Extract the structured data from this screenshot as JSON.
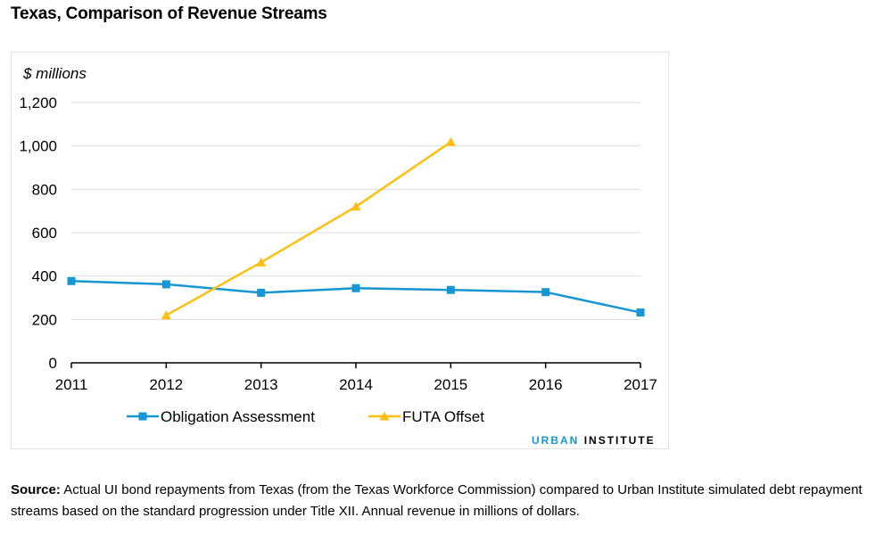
{
  "title": "Texas, Comparison of Revenue Streams",
  "chart_data": {
    "type": "line",
    "ylabel": "$ millions",
    "ylim": [
      0,
      1200
    ],
    "yticks": [
      0,
      200,
      400,
      600,
      800,
      1000,
      1200
    ],
    "ytick_labels": [
      "0",
      "200",
      "400",
      "600",
      "800",
      "1,000",
      "1,200"
    ],
    "categories": [
      "2011",
      "2012",
      "2013",
      "2014",
      "2015",
      "2016",
      "2017"
    ],
    "grid": true,
    "legend_position": "bottom",
    "series": [
      {
        "name": "Obligation Assessment",
        "color": "#1696d2",
        "marker": "square",
        "values": [
          377,
          362,
          323,
          344,
          336,
          326,
          232
        ]
      },
      {
        "name": "FUTA Offset",
        "color": "#fdbf11",
        "marker": "triangle",
        "values": [
          null,
          219,
          463,
          720,
          1018,
          null,
          null
        ]
      }
    ]
  },
  "branding": {
    "part1": "URBAN",
    "part2": "INSTITUTE"
  },
  "source": {
    "label": "Source:",
    "text": "Actual UI bond repayments from Texas (from the Texas Workforce Commission) compared to Urban Institute simulated debt repayment streams based on the standard progression under Title XII. Annual revenue in millions of dollars."
  }
}
